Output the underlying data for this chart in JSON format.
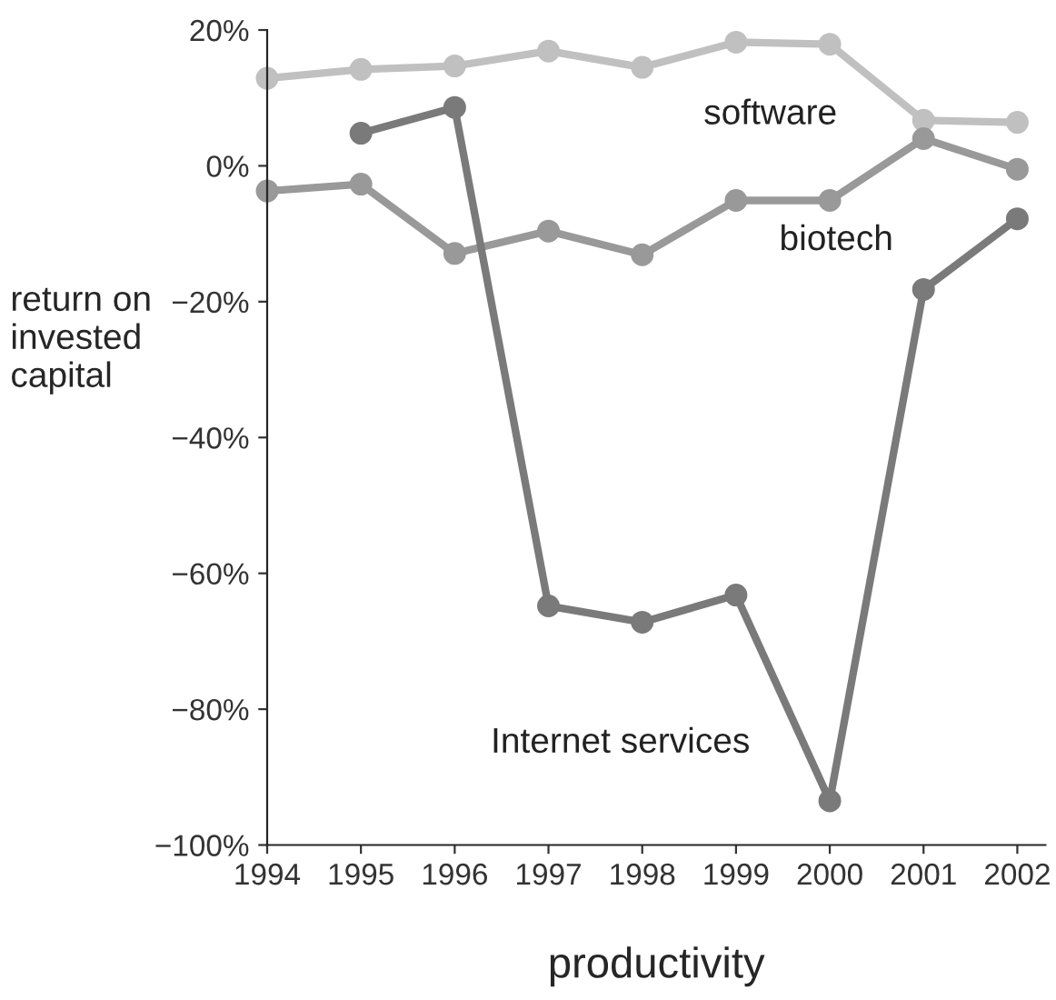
{
  "chart_data": {
    "type": "line",
    "xlabel": "productivity",
    "ylabel": "return on\ninvested\ncapital",
    "x": [
      1994,
      1995,
      1996,
      1997,
      1998,
      1999,
      2000,
      2001,
      2002
    ],
    "series": [
      {
        "name": "software",
        "color": "#c0c0c0",
        "values": [
          12.9,
          14.2,
          14.7,
          16.9,
          14.5,
          18.2,
          17.9,
          6.7,
          6.4
        ]
      },
      {
        "name": "biotech",
        "color": "#999999",
        "values": [
          -3.7,
          -2.7,
          -12.9,
          -9.6,
          -13.1,
          -5.1,
          -5.1,
          4.0,
          -0.5
        ]
      },
      {
        "name": "Internet services",
        "color": "#7a7a7a",
        "values": [
          null,
          4.8,
          8.6,
          -64.8,
          -67.2,
          -63.2,
          -93.5,
          -18.2,
          -7.8
        ]
      }
    ],
    "xlim": [
      1994,
      2002.3
    ],
    "ylim": [
      -100,
      20
    ],
    "xticks": [
      1994,
      1995,
      1996,
      1997,
      1998,
      1999,
      2000,
      2001,
      2002
    ],
    "yticks": [
      {
        "value": -100,
        "label": "−100%"
      },
      {
        "value": -80,
        "label": "−80%"
      },
      {
        "value": -60,
        "label": "−60%"
      },
      {
        "value": -40,
        "label": "−40%"
      },
      {
        "value": -20,
        "label": "−20%"
      },
      {
        "value": 0,
        "label": "0%"
      },
      {
        "value": 20,
        "label": "20%"
      }
    ],
    "marker": "circle",
    "line_style": "solid",
    "grid": false,
    "legend": false
  }
}
